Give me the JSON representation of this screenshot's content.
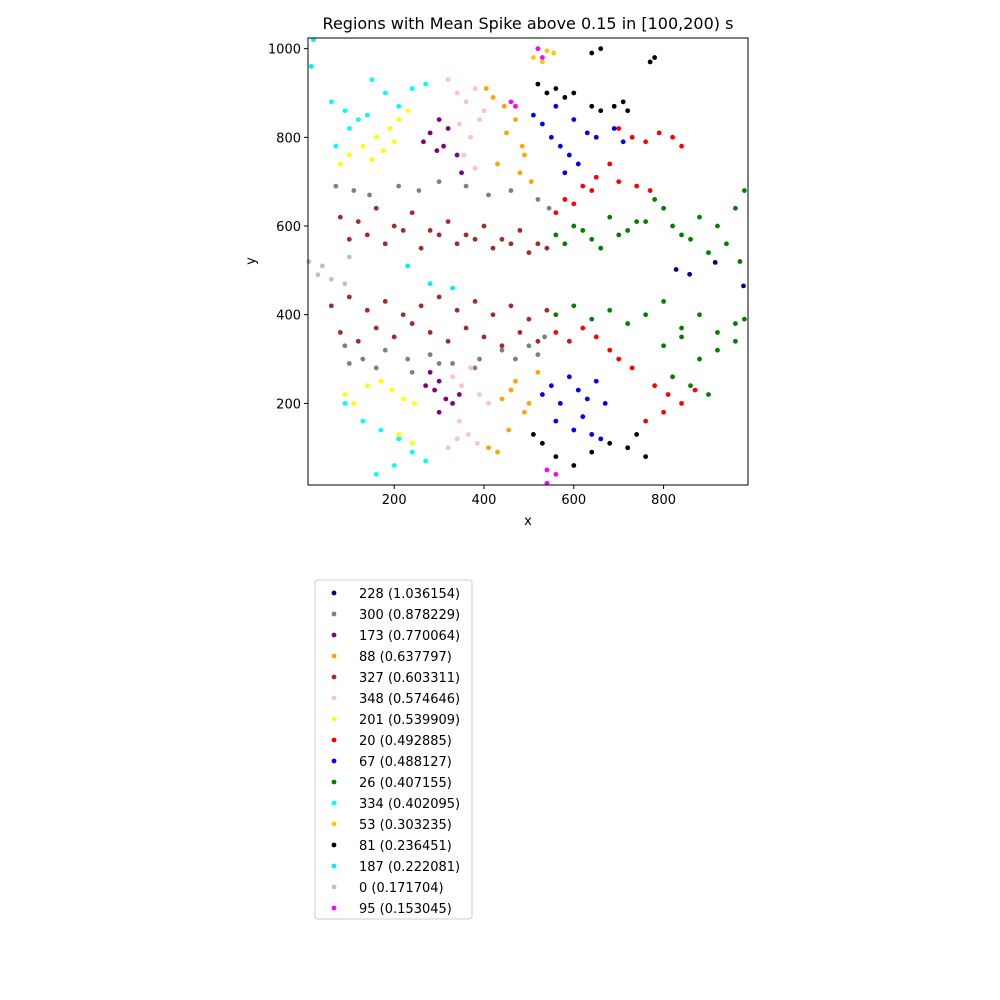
{
  "chart_data": {
    "type": "scatter",
    "title": "Regions with Mean Spike above 0.15 in [100,200) s",
    "xlabel": "x",
    "ylabel": "y",
    "xlim": [
      8,
      988
    ],
    "ylim": [
      16,
      1024
    ],
    "x_ticks": [
      200,
      400,
      600,
      800
    ],
    "y_ticks": [
      200,
      400,
      600,
      800,
      1000
    ],
    "grid": false,
    "legend_position": "below plot, left",
    "series": [
      {
        "name": "228 (1.036154)",
        "color": "#000080",
        "x": [
          828,
          858,
          915,
          978
        ],
        "y": [
          502,
          491,
          518,
          465
        ]
      },
      {
        "name": "300 (0.878229)",
        "color": "#808080",
        "x": [
          70,
          110,
          145,
          210,
          255,
          300,
          360,
          410,
          460,
          520,
          545,
          90,
          130,
          180,
          230,
          280,
          330,
          390,
          440,
          500,
          535,
          100,
          160,
          240,
          300,
          380,
          470,
          520
        ],
        "y": [
          690,
          680,
          670,
          690,
          680,
          700,
          690,
          670,
          680,
          660,
          640,
          330,
          300,
          320,
          300,
          310,
          290,
          300,
          320,
          330,
          350,
          290,
          280,
          270,
          290,
          280,
          300,
          310
        ]
      },
      {
        "name": "173 (0.770064)",
        "color": "#800080",
        "x": [
          265,
          280,
          295,
          310,
          300,
          320,
          340,
          350,
          270,
          290,
          300,
          315,
          330,
          345,
          280,
          300
        ],
        "y": [
          790,
          810,
          770,
          780,
          840,
          820,
          760,
          720,
          240,
          230,
          250,
          210,
          200,
          220,
          270,
          180
        ]
      },
      {
        "name": "88 (0.637797)",
        "color": "#ffa500",
        "x": [
          405,
          420,
          445,
          470,
          485,
          450,
          430,
          490,
          505,
          480,
          460,
          440,
          470,
          500,
          520,
          490,
          455,
          410,
          430
        ],
        "y": [
          910,
          890,
          870,
          840,
          780,
          810,
          740,
          760,
          700,
          720,
          230,
          210,
          250,
          200,
          270,
          180,
          140,
          100,
          90
        ]
      },
      {
        "name": "327 (0.603311)",
        "color": "#a52a2a",
        "x": [
          80,
          120,
          160,
          200,
          240,
          280,
          320,
          360,
          400,
          440,
          480,
          520,
          100,
          140,
          180,
          220,
          260,
          300,
          340,
          380,
          420,
          460,
          500,
          540,
          60,
          100,
          140,
          180,
          220,
          260,
          300,
          340,
          380,
          420,
          460,
          500,
          540,
          80,
          120,
          160,
          200,
          240,
          280,
          320,
          360,
          400,
          440,
          480,
          520
        ],
        "y": [
          620,
          610,
          640,
          600,
          630,
          590,
          610,
          580,
          600,
          570,
          590,
          560,
          570,
          580,
          560,
          590,
          550,
          580,
          560,
          570,
          550,
          560,
          540,
          550,
          420,
          440,
          410,
          430,
          400,
          420,
          440,
          410,
          430,
          400,
          420,
          390,
          410,
          360,
          340,
          370,
          350,
          380,
          360,
          340,
          370,
          350,
          330,
          360,
          340
        ]
      },
      {
        "name": "348 (0.574646)",
        "color": "#ffc0cb",
        "x": [
          320,
          340,
          360,
          380,
          400,
          345,
          370,
          390,
          355,
          380,
          330,
          350,
          370,
          390,
          410,
          345,
          365,
          385,
          320,
          340
        ],
        "y": [
          930,
          900,
          880,
          910,
          860,
          830,
          800,
          840,
          760,
          730,
          260,
          240,
          280,
          220,
          200,
          160,
          130,
          110,
          100,
          120
        ]
      },
      {
        "name": "201 (0.539909)",
        "color": "#ffff00",
        "x": [
          80,
          100,
          130,
          160,
          190,
          210,
          230,
          200,
          175,
          150,
          90,
          110,
          140,
          170,
          195,
          220,
          245,
          210,
          240
        ],
        "y": [
          740,
          760,
          780,
          800,
          820,
          840,
          860,
          790,
          770,
          750,
          220,
          200,
          240,
          250,
          230,
          210,
          200,
          130,
          110
        ]
      },
      {
        "name": "20 (0.492885)",
        "color": "#ff0000",
        "x": [
          700,
          730,
          760,
          790,
          820,
          840,
          680,
          650,
          620,
          580,
          560,
          600,
          640,
          700,
          740,
          770,
          560,
          590,
          620,
          650,
          680,
          700,
          730,
          780,
          810,
          840,
          870,
          760,
          800
        ],
        "y": [
          820,
          800,
          790,
          810,
          800,
          780,
          740,
          710,
          690,
          660,
          630,
          650,
          680,
          700,
          690,
          680,
          360,
          340,
          370,
          350,
          320,
          300,
          280,
          240,
          220,
          200,
          230,
          160,
          180
        ]
      },
      {
        "name": "67 (0.488127)",
        "color": "#0000ff",
        "x": [
          510,
          530,
          550,
          570,
          590,
          610,
          630,
          580,
          560,
          600,
          650,
          690,
          710,
          530,
          550,
          570,
          590,
          610,
          630,
          650,
          670,
          560,
          600,
          620,
          640,
          660
        ],
        "y": [
          850,
          830,
          800,
          780,
          760,
          740,
          810,
          720,
          870,
          840,
          800,
          820,
          790,
          220,
          240,
          200,
          260,
          230,
          210,
          250,
          200,
          160,
          140,
          170,
          130,
          120
        ]
      },
      {
        "name": "26 (0.407155)",
        "color": "#008000",
        "x": [
          560,
          600,
          640,
          680,
          720,
          760,
          800,
          840,
          880,
          920,
          960,
          980,
          580,
          620,
          660,
          700,
          740,
          780,
          820,
          860,
          900,
          940,
          970,
          560,
          600,
          640,
          680,
          720,
          760,
          800,
          840,
          880,
          920,
          960,
          980,
          800,
          840,
          880,
          920,
          960,
          820,
          860,
          900
        ],
        "y": [
          580,
          600,
          570,
          620,
          590,
          610,
          640,
          580,
          620,
          600,
          640,
          680,
          560,
          590,
          550,
          580,
          610,
          660,
          600,
          570,
          540,
          560,
          520,
          400,
          420,
          390,
          410,
          380,
          400,
          430,
          370,
          400,
          360,
          380,
          390,
          330,
          350,
          300,
          320,
          340,
          260,
          240,
          220
        ]
      },
      {
        "name": "334 (0.402095)",
        "color": "#00ffff",
        "x": [
          60,
          90,
          120,
          150,
          180,
          210,
          240,
          270,
          70,
          100,
          140,
          90,
          130,
          170,
          210,
          240,
          270,
          160,
          200
        ],
        "y": [
          880,
          860,
          840,
          930,
          900,
          870,
          910,
          920,
          780,
          820,
          850,
          200,
          160,
          140,
          120,
          90,
          70,
          40,
          60
        ]
      },
      {
        "name": "53 (0.303235)",
        "color": "#ffc700",
        "x": [
          520,
          540,
          555,
          510,
          530
        ],
        "y": [
          1000,
          995,
          990,
          980,
          970
        ]
      },
      {
        "name": "81 (0.236451)",
        "color": "#000000",
        "x": [
          520,
          540,
          560,
          580,
          600,
          640,
          660,
          690,
          710,
          720,
          640,
          660,
          770,
          780,
          510,
          530,
          560,
          600,
          640,
          680,
          720,
          740,
          760
        ],
        "y": [
          920,
          900,
          910,
          890,
          900,
          990,
          1000,
          870,
          880,
          860,
          870,
          860,
          970,
          980,
          130,
          110,
          80,
          60,
          90,
          110,
          100,
          130,
          80
        ]
      },
      {
        "name": "187 (0.222081)",
        "color": "#00eeff",
        "x": [
          20,
          15,
          230,
          280,
          330
        ],
        "y": [
          1020,
          960,
          510,
          470,
          460
        ]
      },
      {
        "name": "0 (0.171704)",
        "color": "#c0c0c0",
        "x": [
          10,
          30,
          40,
          60,
          90,
          100
        ],
        "y": [
          520,
          490,
          510,
          480,
          470,
          530
        ]
      },
      {
        "name": "95 (0.153045)",
        "color": "#ff00ff",
        "x": [
          460,
          470,
          520,
          530,
          540,
          560,
          540
        ],
        "y": [
          880,
          870,
          1000,
          980,
          50,
          40,
          20
        ]
      }
    ]
  }
}
